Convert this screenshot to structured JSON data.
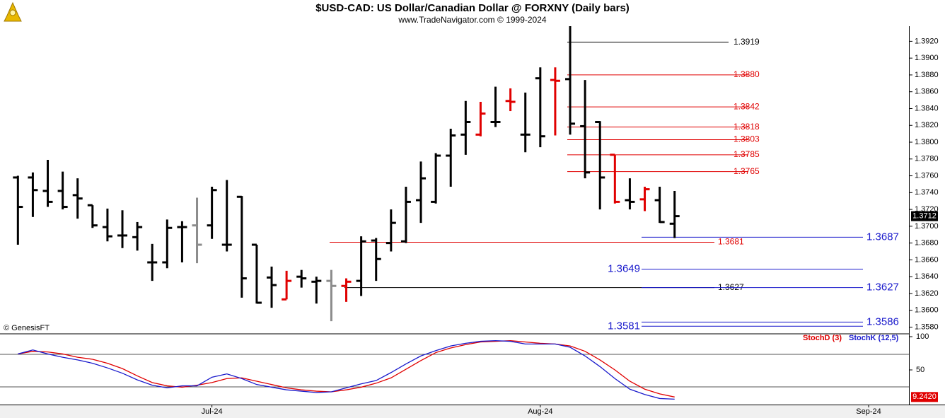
{
  "title": "$USD-CAD:  US Dollar/Canadian Dollar @ FORXNY  (Daily bars)",
  "subtitle": "www.TradeNavigator.com © 1999-2024",
  "copyright": "© GenesisFT",
  "chart_data": [
    {
      "type": "ohlc",
      "x": [
        0,
        1,
        2,
        3,
        4,
        5,
        6,
        7,
        8,
        9,
        10,
        11,
        12,
        13,
        14,
        15,
        16,
        17,
        18,
        19,
        20,
        21,
        22,
        23,
        24,
        25,
        26,
        27,
        28,
        29,
        30,
        31,
        32,
        33,
        34,
        35,
        36,
        37,
        38,
        39,
        40,
        41,
        42,
        43,
        44
      ],
      "open": [
        1.3758,
        1.3758,
        1.3742,
        1.3742,
        1.3737,
        1.3725,
        1.3699,
        1.3689,
        1.3687,
        1.3657,
        1.3657,
        1.3699,
        1.3701,
        1.3701,
        1.3678,
        1.3735,
        1.3678,
        1.3639,
        1.3613,
        1.364,
        1.3634,
        1.3635,
        1.3629,
        1.3635,
        1.3683,
        1.368,
        1.3682,
        1.3731,
        1.3729,
        1.3784,
        1.3809,
        1.3809,
        1.3824,
        1.3849,
        1.3809,
        1.3876,
        1.3874,
        1.3875,
        1.3819,
        1.3824,
        1.3785,
        1.3731,
        1.3732,
        1.3731,
        1.3703
      ],
      "high": [
        1.376,
        1.3764,
        1.3779,
        1.3765,
        1.3757,
        1.3725,
        1.3721,
        1.3719,
        1.3705,
        1.3679,
        1.3708,
        1.3706,
        1.3734,
        1.3747,
        1.3755,
        1.3736,
        1.3678,
        1.3652,
        1.3647,
        1.3648,
        1.364,
        1.3648,
        1.3638,
        1.3688,
        1.3686,
        1.372,
        1.3747,
        1.3777,
        1.3787,
        1.3816,
        1.3849,
        1.3848,
        1.3866,
        1.3864,
        1.3859,
        1.3889,
        1.3889,
        1.3938,
        1.3874,
        1.3825,
        1.3785,
        1.3757,
        1.3747,
        1.3747,
        1.3742
      ],
      "low": [
        1.3678,
        1.3711,
        1.3723,
        1.372,
        1.3709,
        1.3698,
        1.3682,
        1.3674,
        1.3671,
        1.3635,
        1.365,
        1.3657,
        1.3656,
        1.3685,
        1.367,
        1.3615,
        1.3608,
        1.3603,
        1.3613,
        1.3627,
        1.3608,
        1.3587,
        1.361,
        1.3617,
        1.3635,
        1.367,
        1.368,
        1.3704,
        1.3727,
        1.3747,
        1.3785,
        1.3807,
        1.3818,
        1.3837,
        1.3788,
        1.3794,
        1.3808,
        1.3809,
        1.3757,
        1.372,
        1.3727,
        1.372,
        1.3718,
        1.3704,
        1.3686
      ],
      "close": [
        1.3723,
        1.3743,
        1.3729,
        1.3723,
        1.3733,
        1.3701,
        1.3688,
        1.3689,
        1.3699,
        1.3657,
        1.3698,
        1.3699,
        1.3678,
        1.3743,
        1.3678,
        1.3638,
        1.3609,
        1.363,
        1.3635,
        1.3638,
        1.3635,
        1.3629,
        1.3634,
        1.3682,
        1.3661,
        1.3704,
        1.3729,
        1.3757,
        1.3784,
        1.3808,
        1.3824,
        1.3834,
        1.3824,
        1.3848,
        1.3809,
        1.3807,
        1.3873,
        1.3822,
        1.3764,
        1.3758,
        1.3729,
        1.3729,
        1.3744,
        1.3705,
        1.3712
      ],
      "bar_colors": [
        "#000000",
        "#000000",
        "#000000",
        "#000000",
        "#000000",
        "#000000",
        "#000000",
        "#000000",
        "#000000",
        "#000000",
        "#000000",
        "#000000",
        "#8c8c8c",
        "#000000",
        "#000000",
        "#000000",
        "#000000",
        "#000000",
        "#e00000",
        "#000000",
        "#000000",
        "#8c8c8c",
        "#e00000",
        "#000000",
        "#000000",
        "#000000",
        "#000000",
        "#000000",
        "#000000",
        "#000000",
        "#000000",
        "#e00000",
        "#000000",
        "#e00000",
        "#000000",
        "#000000",
        "#e00000",
        "#000000",
        "#000000",
        "#000000",
        "#e00000",
        "#000000",
        "#e00000",
        "#000000",
        "#000000"
      ],
      "xlim": [
        -1.2,
        59.7
      ],
      "xticks": [
        {
          "value": 13,
          "label": "Jul-24"
        },
        {
          "value": 35,
          "label": "Aug-24"
        },
        {
          "value": 57,
          "label": "Sep-24"
        }
      ],
      "ylim": [
        1.3572,
        1.3938
      ],
      "yticks": [
        {
          "value": 1.358,
          "label": "1.3580"
        },
        {
          "value": 1.36,
          "label": "1.3600"
        },
        {
          "value": 1.362,
          "label": "1.3620"
        },
        {
          "value": 1.364,
          "label": "1.3640"
        },
        {
          "value": 1.366,
          "label": "1.3660"
        },
        {
          "value": 1.368,
          "label": "1.3680"
        },
        {
          "value": 1.37,
          "label": "1.3700"
        },
        {
          "value": 1.372,
          "label": "1.3720"
        },
        {
          "value": 1.374,
          "label": "1.3740"
        },
        {
          "value": 1.376,
          "label": "1.3760"
        },
        {
          "value": 1.378,
          "label": "1.3780"
        },
        {
          "value": 1.38,
          "label": "1.3800"
        },
        {
          "value": 1.382,
          "label": "1.3820"
        },
        {
          "value": 1.384,
          "label": "1.3840"
        },
        {
          "value": 1.386,
          "label": "1.3860"
        },
        {
          "value": 1.388,
          "label": "1.3880"
        },
        {
          "value": 1.39,
          "label": "1.3900"
        },
        {
          "value": 1.392,
          "label": "1.3920"
        }
      ],
      "levels": [
        {
          "value": 1.3919,
          "label": "1.3919",
          "color": "#000000"
        },
        {
          "value": 1.388,
          "label": "1.3880",
          "color": "#e00000"
        },
        {
          "value": 1.3842,
          "label": "1.3842",
          "color": "#e00000"
        },
        {
          "value": 1.3818,
          "label": "1.3818",
          "color": "#e00000"
        },
        {
          "value": 1.3803,
          "label": "1.3803",
          "color": "#e00000"
        },
        {
          "value": 1.3785,
          "label": "1.3785",
          "color": "#e00000"
        },
        {
          "value": 1.3765,
          "label": "1.3765",
          "color": "#e00000"
        },
        {
          "value": 1.3681,
          "label": "1.3681",
          "color": "#e00000"
        },
        {
          "value": 1.3627,
          "label": "1.3627",
          "color": "#000000"
        },
        {
          "value": 1.3687,
          "label": "1.3687",
          "color": "#1a1acc"
        },
        {
          "value": 1.3649,
          "label": "1.3649",
          "color": "#1a1acc"
        },
        {
          "value": 1.3627,
          "label": "1.3627",
          "color": "#1a1acc"
        },
        {
          "value": 1.3586,
          "label": "1.3586",
          "color": "#1a1acc"
        },
        {
          "value": 1.3581,
          "label": "1.3581",
          "color": "#1a1acc"
        }
      ]
    },
    {
      "type": "line",
      "series": [
        {
          "name": "StochD (3)",
          "color": "#e00000",
          "values": [
            74,
            78,
            77,
            74,
            69,
            66,
            60,
            52,
            41,
            31,
            26,
            24,
            27,
            31,
            37,
            38,
            33,
            28,
            23,
            20,
            18,
            17,
            20,
            24,
            30,
            38,
            51,
            64,
            76,
            83,
            88,
            92,
            93,
            94,
            92,
            90,
            89,
            86,
            78,
            65,
            50,
            33,
            21,
            14,
            9.242
          ],
          "last_label": "9.2420"
        },
        {
          "name": "StochK (12,5)",
          "color": "#1a1acc",
          "values": [
            74,
            80,
            74,
            69,
            65,
            60,
            53,
            45,
            35,
            27,
            23,
            26,
            26,
            39,
            44,
            37,
            28,
            24,
            20,
            18,
            16,
            17,
            23,
            29,
            34,
            46,
            59,
            71,
            79,
            86,
            90,
            93,
            94,
            93,
            89,
            89,
            89,
            84,
            71,
            55,
            37,
            21,
            13,
            7,
            6
          ]
        }
      ],
      "ylim": [
        0,
        100
      ],
      "yticks": [
        50,
        100
      ],
      "hlines": [
        73.4,
        24.5
      ]
    }
  ]
}
